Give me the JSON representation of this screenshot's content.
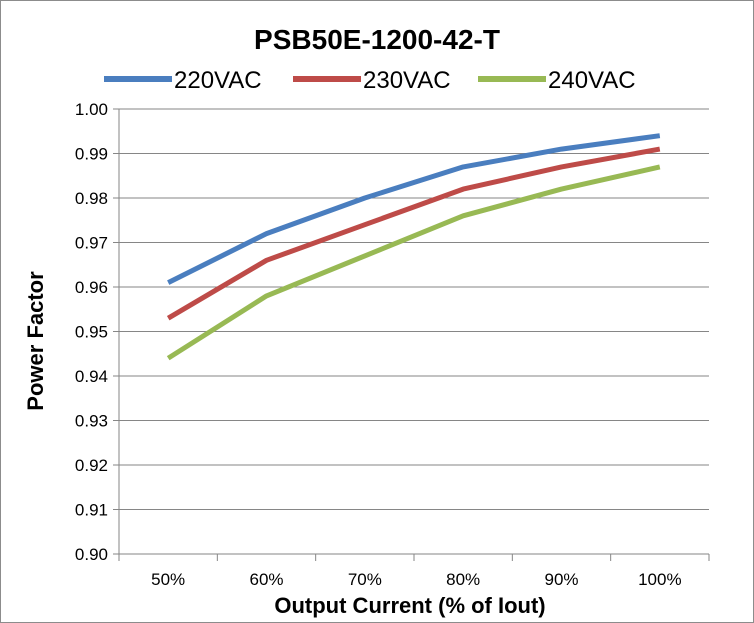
{
  "chart_data": {
    "type": "line",
    "title": "PSB50E-1200-42-T",
    "xlabel": "Output Current (% of Iout)",
    "ylabel": "Power Factor",
    "categories": [
      "50%",
      "60%",
      "70%",
      "80%",
      "90%",
      "100%"
    ],
    "ylim": [
      0.9,
      1.0
    ],
    "yticks": [
      "0.90",
      "0.91",
      "0.92",
      "0.93",
      "0.94",
      "0.95",
      "0.96",
      "0.97",
      "0.98",
      "0.99",
      "1.00"
    ],
    "grid": true,
    "legend_position": "top",
    "series": [
      {
        "name": "220VAC",
        "color": "#4a7ebf",
        "values": [
          0.961,
          0.972,
          0.98,
          0.987,
          0.991,
          0.994
        ]
      },
      {
        "name": "230VAC",
        "color": "#be4b48",
        "values": [
          0.953,
          0.966,
          0.974,
          0.982,
          0.987,
          0.991
        ]
      },
      {
        "name": "240VAC",
        "color": "#98b954",
        "values": [
          0.944,
          0.958,
          0.967,
          0.976,
          0.982,
          0.987
        ]
      }
    ]
  }
}
